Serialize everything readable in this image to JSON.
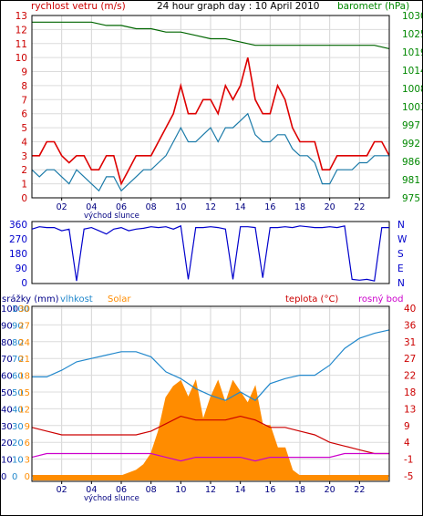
{
  "chart_data": [
    {
      "type": "line",
      "title": "24 hour graph day : 10 April 2010",
      "left_axis_title": "rychlost vetru (m/s)",
      "right_axis_title": "barometr (hPa)",
      "x_tick_labels": [
        "02",
        "04",
        "06",
        "08",
        "10",
        "12",
        "14",
        "16",
        "18",
        "20",
        "22"
      ],
      "x_caption": "východ slunce",
      "x_range_hours": [
        0,
        24
      ],
      "y_left_ticks": [
        "0",
        "1",
        "2",
        "3",
        "4",
        "5",
        "6",
        "7",
        "8",
        "9",
        "10",
        "11",
        "12",
        "13"
      ],
      "y_left_range": [
        0,
        13
      ],
      "y_right_ticks": [
        "975",
        "981",
        "986",
        "992",
        "997",
        "1003",
        "1008",
        "1014",
        "1019",
        "1025",
        "1030"
      ],
      "y_right_range": [
        975,
        1030
      ],
      "colors": {
        "gust": "#dd0000",
        "wind": "#1a7aa8",
        "pressure": "#006600",
        "left_axis": "#cc0000",
        "right_axis": "#008800",
        "title": "#000000"
      },
      "grid": true,
      "series": [
        {
          "key": "gust",
          "x": [
            0,
            0.5,
            1,
            1.5,
            2,
            2.5,
            3,
            3.5,
            4,
            4.5,
            5,
            5.5,
            6,
            6.5,
            7,
            7.5,
            8,
            8.5,
            9,
            9.5,
            10,
            10.5,
            11,
            11.5,
            12,
            12.5,
            13,
            13.5,
            14,
            14.5,
            15,
            15.5,
            16,
            16.5,
            17,
            17.5,
            18,
            18.5,
            19,
            19.5,
            20,
            20.5,
            21,
            21.5,
            22,
            22.5,
            23,
            23.5,
            24
          ],
          "values": [
            3,
            3,
            4,
            4,
            3,
            2.5,
            3,
            3,
            2,
            2,
            3,
            3,
            1,
            2,
            3,
            3,
            3,
            4,
            5,
            6,
            8,
            6,
            6,
            7,
            7,
            6,
            8,
            7,
            8,
            10,
            7,
            6,
            6,
            8,
            7,
            5,
            4,
            4,
            4,
            2,
            2,
            3,
            3,
            3,
            3,
            3,
            4,
            4,
            3
          ]
        },
        {
          "key": "wind",
          "x": [
            0,
            0.5,
            1,
            1.5,
            2,
            2.5,
            3,
            3.5,
            4,
            4.5,
            5,
            5.5,
            6,
            6.5,
            7,
            7.5,
            8,
            8.5,
            9,
            9.5,
            10,
            10.5,
            11,
            11.5,
            12,
            12.5,
            13,
            13.5,
            14,
            14.5,
            15,
            15.5,
            16,
            16.5,
            17,
            17.5,
            18,
            18.5,
            19,
            19.5,
            20,
            20.5,
            21,
            21.5,
            22,
            22.5,
            23,
            23.5,
            24
          ],
          "values": [
            2,
            1.5,
            2,
            2,
            1.5,
            1,
            2,
            1.5,
            1,
            0.5,
            1.5,
            1.5,
            0.5,
            1,
            1.5,
            2,
            2,
            2.5,
            3,
            4,
            5,
            4,
            4,
            4.5,
            5,
            4,
            5,
            5,
            5.5,
            6,
            4.5,
            4,
            4,
            4.5,
            4.5,
            3.5,
            3,
            3,
            2.5,
            1,
            1,
            2,
            2,
            2,
            2.5,
            2.5,
            3,
            3,
            3
          ]
        },
        {
          "key": "pressure",
          "x": [
            0,
            2,
            4,
            5,
            6,
            7,
            8,
            9,
            10,
            11,
            12,
            13,
            14,
            15,
            16,
            17,
            18,
            19,
            20,
            21,
            22,
            23,
            24
          ],
          "values": [
            1028,
            1028,
            1028,
            1027,
            1027,
            1026,
            1026,
            1025,
            1025,
            1024,
            1023,
            1023,
            1022,
            1021,
            1021,
            1021,
            1021,
            1021,
            1021,
            1021,
            1021,
            1021,
            1020
          ]
        }
      ]
    },
    {
      "type": "line",
      "left_ticks": [
        "360",
        "270",
        "180",
        "90",
        "0"
      ],
      "y_range": [
        0,
        360
      ],
      "direction_labels": [
        "N",
        "W",
        "S",
        "E",
        "N"
      ],
      "colors": {
        "line": "#0000cc",
        "axis": "#0000cc"
      },
      "series": [
        {
          "key": "wind_direction",
          "x": [
            0,
            0.5,
            1,
            1.5,
            2,
            2.5,
            3,
            3.5,
            4,
            4.5,
            5,
            5.5,
            6,
            6.5,
            7,
            7.5,
            8,
            8.5,
            9,
            9.5,
            10,
            10.5,
            11,
            11.5,
            12,
            12.5,
            13,
            13.5,
            14,
            14.5,
            15,
            15.5,
            16,
            16.5,
            17,
            17.5,
            18,
            18.5,
            19,
            19.5,
            20,
            20.5,
            21,
            21.5,
            22,
            22.5,
            23,
            23.5,
            24
          ],
          "values": [
            330,
            345,
            340,
            340,
            320,
            330,
            10,
            330,
            340,
            320,
            300,
            330,
            340,
            320,
            330,
            335,
            345,
            340,
            345,
            330,
            350,
            20,
            340,
            340,
            345,
            340,
            330,
            20,
            345,
            345,
            340,
            30,
            340,
            340,
            345,
            340,
            350,
            345,
            340,
            340,
            345,
            340,
            350,
            20,
            15,
            20,
            10,
            340,
            340
          ]
        }
      ]
    },
    {
      "type": "line",
      "left_axis_titles": [
        "srážky (mm)",
        "vlhkost",
        "Solar"
      ],
      "right_axis_titles": [
        "teplota (°C)",
        "rosný bod"
      ],
      "y_left_outer_ticks": [
        "0",
        "10",
        "20",
        "30",
        "40",
        "50",
        "60",
        "70",
        "80",
        "90",
        "100"
      ],
      "y_left_mid_ticks": [
        "0",
        "10",
        "20",
        "30",
        "40",
        "50",
        "60",
        "70",
        "80",
        "90",
        "100"
      ],
      "y_left_inner_ticks": [
        "0",
        "3",
        "6",
        "9",
        "12",
        "15",
        "18",
        "21",
        "24",
        "27",
        "30"
      ],
      "y_right_ticks": [
        "-5",
        "-1",
        "4",
        "9",
        "13",
        "18",
        "22",
        "27",
        "31",
        "36",
        "40"
      ],
      "y_right_range": [
        -5,
        40
      ],
      "x_tick_labels": [
        "02",
        "04",
        "06",
        "08",
        "10",
        "12",
        "14",
        "16",
        "18",
        "20",
        "22"
      ],
      "x_caption": "východ slunce",
      "colors": {
        "humidity": "#2288cc",
        "temperature": "#cc0000",
        "dewpoint": "#cc00cc",
        "solar": "#ff8c00",
        "rain_axis": "#000088",
        "humidity_axis": "#2288cc",
        "solar_axis": "#ff8c00",
        "temp_axis": "#cc0000",
        "dew_axis": "#cc00cc"
      },
      "grid": true,
      "series": [
        {
          "key": "humidity",
          "unit": "%",
          "x": [
            0,
            1,
            2,
            3,
            4,
            5,
            6,
            7,
            8,
            9,
            10,
            11,
            12,
            13,
            14,
            15,
            16,
            17,
            18,
            19,
            20,
            21,
            22,
            23,
            24
          ],
          "values": [
            59,
            59,
            63,
            68,
            70,
            72,
            74,
            74,
            71,
            62,
            58,
            52,
            48,
            45,
            50,
            45,
            55,
            58,
            60,
            60,
            66,
            76,
            82,
            85,
            87
          ]
        },
        {
          "key": "temperature",
          "unit": "°C",
          "x": [
            0,
            1,
            2,
            3,
            4,
            5,
            6,
            7,
            8,
            9,
            10,
            11,
            12,
            13,
            14,
            15,
            16,
            17,
            18,
            19,
            20,
            21,
            22,
            23,
            24
          ],
          "values": [
            8,
            7,
            6,
            6,
            6,
            6,
            6,
            6,
            7,
            9,
            11,
            10,
            10,
            10,
            11,
            10,
            8,
            8,
            7,
            6,
            4,
            3,
            2,
            1,
            1
          ]
        },
        {
          "key": "dewpoint",
          "unit": "°C",
          "x": [
            0,
            1,
            2,
            3,
            4,
            5,
            6,
            7,
            8,
            9,
            10,
            11,
            12,
            13,
            14,
            15,
            16,
            17,
            18,
            19,
            20,
            21,
            22,
            23,
            24
          ],
          "values": [
            0,
            1,
            1,
            1,
            1,
            1,
            1,
            1,
            1,
            0,
            -1,
            0,
            0,
            0,
            0,
            -1,
            0,
            0,
            0,
            0,
            0,
            1,
            1,
            1,
            1
          ]
        },
        {
          "key": "solar",
          "unit": "relative",
          "x": [
            0,
            6,
            7,
            7.5,
            8,
            8.5,
            9,
            9.5,
            10,
            10.5,
            11,
            11.5,
            12,
            12.5,
            13,
            13.5,
            14,
            14.5,
            15,
            15.5,
            16,
            16.5,
            17,
            17.5,
            18,
            24
          ],
          "values": [
            0,
            0,
            1,
            2,
            4,
            8,
            14,
            16,
            17,
            14,
            17,
            10,
            14,
            17,
            13,
            17,
            15,
            13,
            16,
            9,
            9,
            5,
            5,
            1,
            0,
            0
          ]
        }
      ]
    }
  ]
}
